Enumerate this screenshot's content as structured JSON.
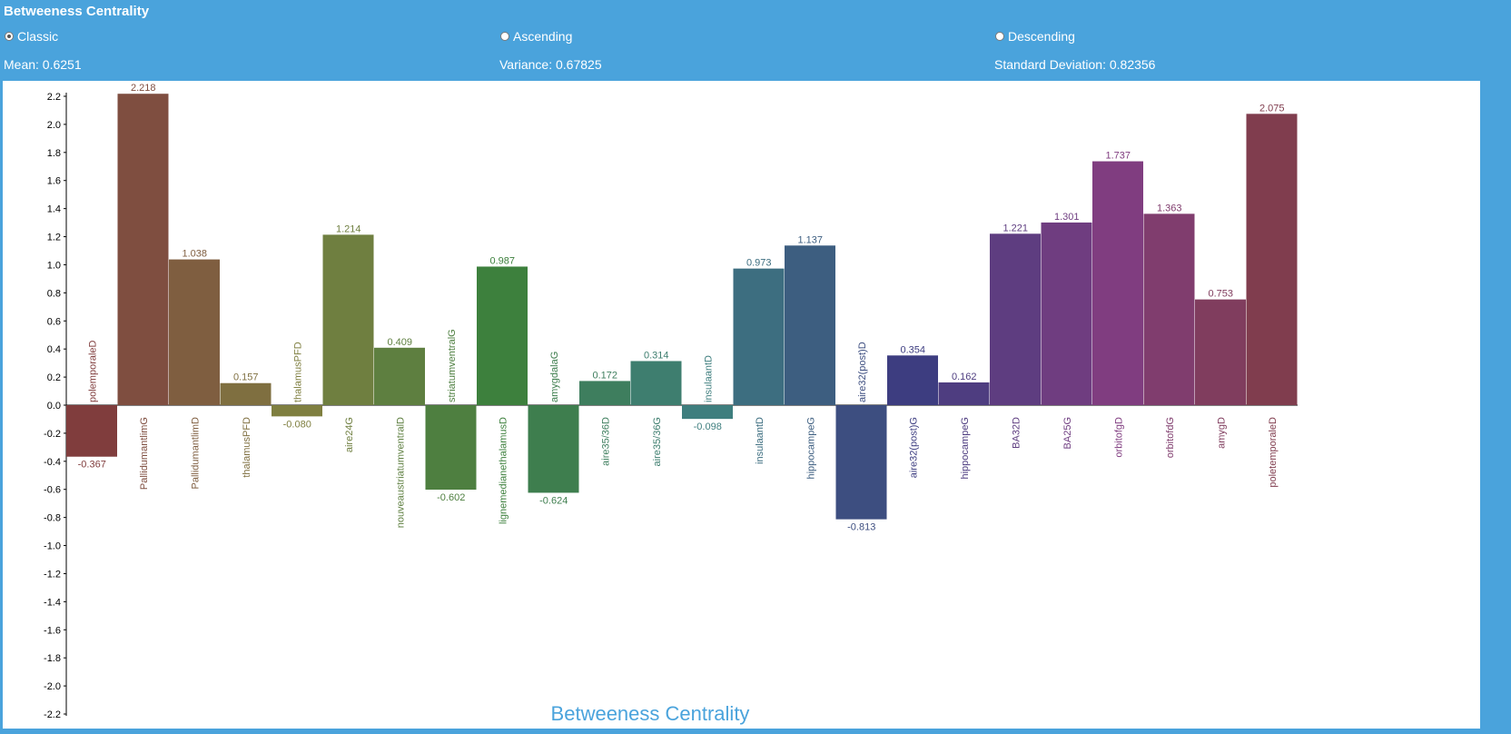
{
  "header": {
    "title": "Betweeness Centrality"
  },
  "sort_options": [
    {
      "label": "Classic",
      "checked": true
    },
    {
      "label": "Ascending",
      "checked": false
    },
    {
      "label": "Descending",
      "checked": false
    }
  ],
  "stats": {
    "mean": "Mean: 0.6251",
    "variance": "Variance: 0.67825",
    "std": "Standard Deviation: 0.82356"
  },
  "chart_data": {
    "type": "bar",
    "title": "Betweeness Centrality",
    "xlabel": "",
    "ylabel": "",
    "ylim": [
      -2.2,
      2.2
    ],
    "y_ticks": [
      "2.2",
      "2.0",
      "1.8",
      "1.6",
      "1.4",
      "1.2",
      "1.0",
      "0.8",
      "0.6",
      "0.4",
      "0.2",
      "0.0",
      "-0.2",
      "-0.4",
      "-0.6",
      "-0.8",
      "-1.0",
      "-1.2",
      "-1.4",
      "-1.6",
      "-1.8",
      "-2.0",
      "-2.2"
    ],
    "grid": false,
    "categories": [
      "polemporaleD",
      "PallidumantlimG",
      "PallidumantlimD",
      "thalamusPFD",
      "thalamusPFD",
      "aire24G",
      "nouveaustriatumventralD",
      "striatumventralG",
      "lignemedianethalamusD",
      "amygdalaG",
      "aire35/36D",
      "aire35/36G",
      "insulaantD",
      "insulaantD",
      "hippocampeG",
      "aire32(post)D",
      "aire32(post)G",
      "hippocampeG",
      "BA32D",
      "BA25G",
      "orbitofgD",
      "orbitofdG",
      "amygD",
      "poletemporaleD"
    ],
    "values": [
      -0.367,
      2.218,
      1.038,
      0.157,
      -0.08,
      1.214,
      0.409,
      -0.602,
      0.987,
      -0.624,
      0.172,
      0.314,
      -0.098,
      0.973,
      1.137,
      -0.813,
      0.354,
      0.162,
      1.221,
      1.301,
      1.737,
      1.363,
      0.753,
      2.075
    ],
    "value_labels": [
      "-0.367",
      "2.218",
      "1.038",
      "0.157",
      "-0.080",
      "1.214",
      "0.409",
      "-0.602",
      "0.987",
      "-0.624",
      "0.172",
      "0.314",
      "-0.098",
      "0.973",
      "1.137",
      "-0.813",
      "0.354",
      "0.162",
      "1.221",
      "1.301",
      "1.737",
      "1.363",
      "0.753",
      "2.075"
    ],
    "colors": [
      "#803d3d",
      "#7f4e40",
      "#7f5e40",
      "#7f6f40",
      "#7f7f40",
      "#6f7f40",
      "#5e7f40",
      "#4e7f40",
      "#3d803d",
      "#3e7e4e",
      "#3e7e5e",
      "#3e7e6f",
      "#3e7e7e",
      "#3d6e80",
      "#3d5e80",
      "#3d4e80",
      "#3d3d80",
      "#4e3d80",
      "#5e3d80",
      "#6f3d80",
      "#803d80",
      "#803d6e",
      "#803d5e",
      "#803d4e"
    ]
  }
}
